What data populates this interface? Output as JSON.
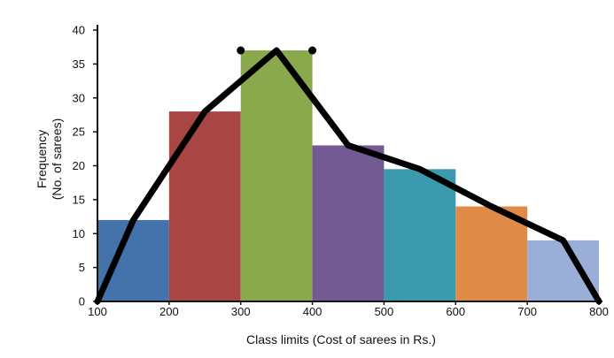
{
  "chart_data": {
    "type": "bar",
    "title": "",
    "xlabel": "Class limits (Cost of sarees in Rs.)",
    "ylabel": "Frequency",
    "ylabel_sub": "(No. of sarees)",
    "xlim": [
      100,
      800
    ],
    "ylim": [
      0,
      40
    ],
    "x_ticks": [
      100,
      200,
      300,
      400,
      500,
      600,
      700,
      800
    ],
    "y_ticks": [
      0,
      5,
      10,
      15,
      20,
      25,
      30,
      35,
      40
    ],
    "grid": false,
    "legend": "none",
    "bars": [
      {
        "from": 100,
        "to": 200,
        "value": 12,
        "color": "#4472AA"
      },
      {
        "from": 200,
        "to": 300,
        "value": 28,
        "color": "#A84643"
      },
      {
        "from": 300,
        "to": 400,
        "value": 37,
        "color": "#8AA84C"
      },
      {
        "from": 400,
        "to": 500,
        "value": 23,
        "color": "#745A93"
      },
      {
        "from": 500,
        "to": 600,
        "value": 19.5,
        "color": "#3C9AAF"
      },
      {
        "from": 600,
        "to": 700,
        "value": 14,
        "color": "#DF8B47"
      },
      {
        "from": 700,
        "to": 800,
        "value": 9,
        "color": "#9BAED8"
      }
    ],
    "frequency_polygon": {
      "color": "#000000",
      "x": [
        100,
        150,
        250,
        350,
        450,
        550,
        650,
        750,
        800
      ],
      "y": [
        0,
        12,
        28,
        37,
        23,
        19.5,
        14,
        9,
        0
      ]
    },
    "markers": [
      {
        "x": 300,
        "y": 37
      },
      {
        "x": 400,
        "y": 37
      }
    ]
  }
}
